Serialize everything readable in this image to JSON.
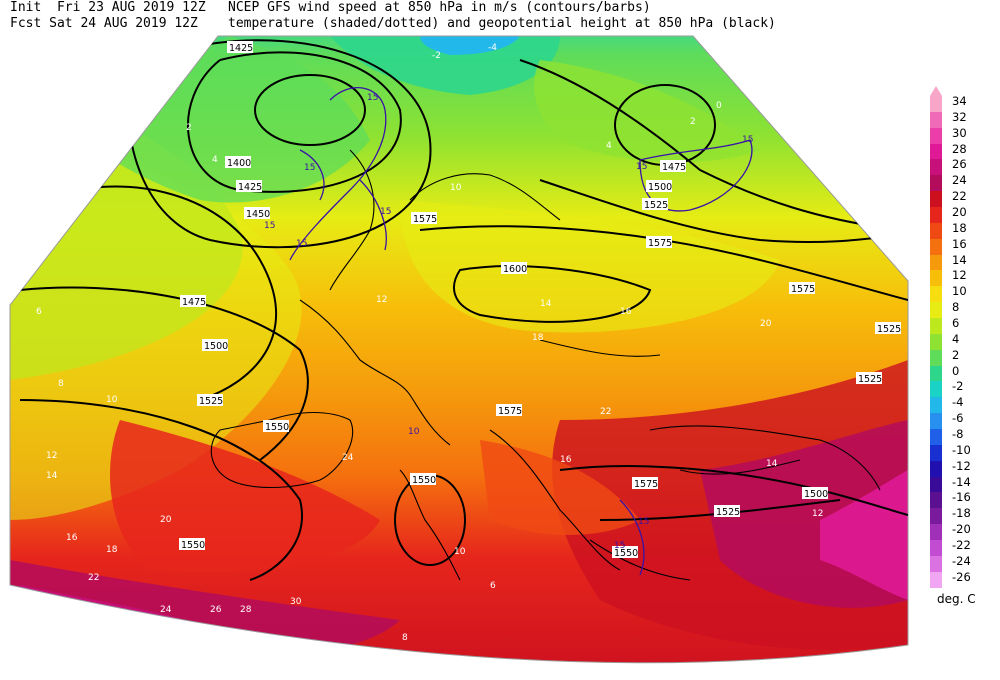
{
  "header": {
    "init_label": "Init  Fri 23 AUG 2019 12Z",
    "fcst_label": "Fcst Sat 24 AUG 2019 12Z",
    "title_line1": "NCEP GFS wind speed at 850 hPa in m/s (contours/barbs)",
    "title_line2": "temperature (shaded/dotted) and geopotential height at 850 hPa (black)"
  },
  "colorbar": {
    "units": "deg. C",
    "levels": [
      "34",
      "32",
      "30",
      "28",
      "26",
      "24",
      "22",
      "20",
      "18",
      "16",
      "14",
      "12",
      "10",
      "8",
      "6",
      "4",
      "2",
      "0",
      "-2",
      "-4",
      "-6",
      "-8",
      "-10",
      "-12",
      "-14",
      "-16",
      "-18",
      "-20",
      "-22",
      "-24",
      "-26"
    ],
    "colors": [
      "#f7a6c8",
      "#f06ab8",
      "#ec3ea8",
      "#e01a96",
      "#c8107a",
      "#b40c5c",
      "#cc1020",
      "#e6261c",
      "#f04a14",
      "#f5700e",
      "#f59a0c",
      "#f7be0a",
      "#f7de10",
      "#e6ec14",
      "#bde81e",
      "#8ee232",
      "#5edc5a",
      "#2ed68c",
      "#1ad2c6",
      "#22b8ea",
      "#2890ee",
      "#2060e8",
      "#1830d0",
      "#2010b0",
      "#3a0a98",
      "#5a1090",
      "#7a1a9c",
      "#a030b8",
      "#c24cd2",
      "#da72e2",
      "#f0a6f2"
    ]
  },
  "geopotential_labels": [
    "1425",
    "1400",
    "1425",
    "1450",
    "1475",
    "1500",
    "1525",
    "1550",
    "1550",
    "1575",
    "1600",
    "1575",
    "1575",
    "1575",
    "1525",
    "1525",
    "1500",
    "1525",
    "1550",
    "1575",
    "1475",
    "1500",
    "1525",
    "1550"
  ],
  "temperature_labels": [
    "2",
    "4",
    "6",
    "8",
    "10",
    "12",
    "14",
    "16",
    "18",
    "20",
    "22",
    "24",
    "26",
    "28",
    "30",
    "10",
    "12",
    "14",
    "16",
    "18",
    "20",
    "22",
    "24",
    "16",
    "14",
    "12",
    "10",
    "8",
    "6",
    "4",
    "2",
    "0",
    "-2",
    "-4"
  ],
  "wind_labels": [
    "15",
    "15",
    "15",
    "15",
    "15",
    "15",
    "15",
    "10",
    "15",
    "15"
  ]
}
